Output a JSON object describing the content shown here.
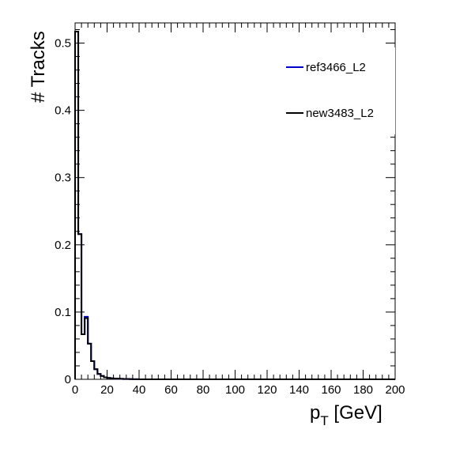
{
  "chart_data": {
    "type": "line",
    "subtype": "step-histogram",
    "xlabel": "p_T [GeV]",
    "xlabel_main": "p",
    "xlabel_sub": "T",
    "xlabel_unit": " [GeV]",
    "ylabel": "# Tracks",
    "xlim": [
      0,
      200
    ],
    "ylim": [
      0,
      0.53
    ],
    "x_ticks": [
      0,
      20,
      40,
      60,
      80,
      100,
      120,
      140,
      160,
      180,
      200
    ],
    "x_tick_labels": [
      "0",
      "20",
      "40",
      "60",
      "80",
      "100",
      "120",
      "140",
      "160",
      "180",
      "200"
    ],
    "y_ticks": [
      0,
      0.1,
      0.2,
      0.3,
      0.4,
      0.5
    ],
    "y_tick_labels": [
      "0",
      "0.1",
      "0.2",
      "0.3",
      "0.4",
      "0.5"
    ],
    "grid": false,
    "legend_position": "top-right",
    "bin_edges": [
      0,
      2,
      4,
      6,
      8,
      10,
      12,
      14,
      16,
      18,
      20,
      22,
      24,
      26,
      28,
      30,
      32,
      34,
      36,
      38,
      40,
      200
    ],
    "series": [
      {
        "name": "ref3466_L2",
        "color": "#0000cc",
        "values": [
          0.517,
          0.216,
          0.067,
          0.093,
          0.053,
          0.027,
          0.015,
          0.008,
          0.005,
          0.003,
          0.002,
          0.0015,
          0.001,
          0.001,
          0.0007,
          0.0005,
          0.0004,
          0.0003,
          0.0002,
          0.0002,
          0.0
        ]
      },
      {
        "name": "new3483_L2",
        "color": "#000000",
        "values": [
          0.517,
          0.216,
          0.067,
          0.091,
          0.053,
          0.027,
          0.015,
          0.008,
          0.005,
          0.003,
          0.002,
          0.0015,
          0.001,
          0.001,
          0.0007,
          0.0005,
          0.0004,
          0.0003,
          0.0002,
          0.0002,
          0.0
        ]
      }
    ]
  }
}
